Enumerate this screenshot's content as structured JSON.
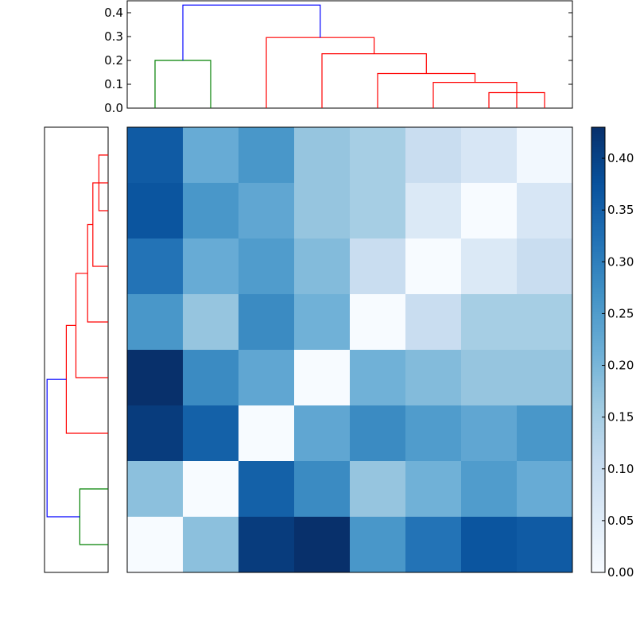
{
  "chart_data": [
    {
      "type": "dendrogram",
      "panel": "top",
      "orientation": "top",
      "ylim": [
        0,
        0.45
      ],
      "yticks": [
        0.0,
        0.1,
        0.2,
        0.3,
        0.4
      ],
      "ytick_labels": [
        "0.0",
        "0.1",
        "0.2",
        "0.3",
        "0.4"
      ],
      "xlim": [
        0,
        80
      ],
      "links": [
        {
          "xs": [
            5,
            5,
            15,
            15
          ],
          "ys": [
            0,
            0.2,
            0.2,
            0
          ],
          "color": "#008000"
        },
        {
          "xs": [
            65,
            65,
            75,
            75
          ],
          "ys": [
            0,
            0.065,
            0.065,
            0
          ],
          "color": "#ff0000"
        },
        {
          "xs": [
            55,
            55,
            70,
            70
          ],
          "ys": [
            0,
            0.108,
            0.108,
            0
          ],
          "color": "#ff0000"
        },
        {
          "xs": [
            45,
            45,
            62.5,
            62.5
          ],
          "ys": [
            0,
            0.145,
            0.145,
            0.108
          ],
          "color": "#ff0000"
        },
        {
          "xs": [
            35,
            35,
            53.75,
            53.75
          ],
          "ys": [
            0,
            0.228,
            0.228,
            0.145
          ],
          "color": "#ff0000"
        },
        {
          "xs": [
            25,
            25,
            44.375,
            44.375
          ],
          "ys": [
            0,
            0.296,
            0.296,
            0.228
          ],
          "color": "#ff0000"
        },
        {
          "xs": [
            10,
            10,
            34.6875,
            34.6875
          ],
          "ys": [
            0.2,
            0.432,
            0.432,
            0.296
          ],
          "color": "#0000ff"
        }
      ]
    },
    {
      "type": "dendrogram",
      "panel": "left",
      "orientation": "left",
      "xlim": [
        0.45,
        0
      ],
      "ylim": [
        0,
        80
      ],
      "links": [
        {
          "ys": [
            5,
            5,
            15,
            15
          ],
          "xs": [
            0,
            0.2,
            0.2,
            0
          ],
          "color": "#008000"
        },
        {
          "ys": [
            65,
            65,
            75,
            75
          ],
          "xs": [
            0,
            0.065,
            0.065,
            0
          ],
          "color": "#ff0000"
        },
        {
          "ys": [
            55,
            55,
            70,
            70
          ],
          "xs": [
            0,
            0.108,
            0.108,
            0
          ],
          "color": "#ff0000"
        },
        {
          "ys": [
            45,
            45,
            62.5,
            62.5
          ],
          "xs": [
            0,
            0.145,
            0.145,
            0.108
          ],
          "color": "#ff0000"
        },
        {
          "ys": [
            35,
            35,
            53.75,
            53.75
          ],
          "xs": [
            0,
            0.228,
            0.228,
            0.145
          ],
          "color": "#ff0000"
        },
        {
          "ys": [
            25,
            25,
            44.375,
            44.375
          ],
          "xs": [
            0,
            0.296,
            0.296,
            0.228
          ],
          "color": "#ff0000"
        },
        {
          "ys": [
            10,
            10,
            34.6875,
            34.6875
          ],
          "xs": [
            0.2,
            0.432,
            0.432,
            0.296
          ],
          "color": "#0000ff"
        }
      ]
    },
    {
      "type": "heatmap",
      "colormap": "Blues",
      "vmin": 0.0,
      "vmax": 0.43,
      "rows": 8,
      "cols": 8,
      "values": [
        [
          0.36,
          0.22,
          0.26,
          0.17,
          0.15,
          0.1,
          0.07,
          0.01
        ],
        [
          0.37,
          0.26,
          0.23,
          0.17,
          0.15,
          0.06,
          0.0,
          0.07
        ],
        [
          0.32,
          0.22,
          0.25,
          0.19,
          0.1,
          0.0,
          0.06,
          0.1
        ],
        [
          0.26,
          0.17,
          0.28,
          0.21,
          0.0,
          0.1,
          0.15,
          0.15
        ],
        [
          0.43,
          0.28,
          0.23,
          0.0,
          0.21,
          0.19,
          0.17,
          0.17
        ],
        [
          0.41,
          0.35,
          0.0,
          0.23,
          0.28,
          0.25,
          0.23,
          0.26
        ],
        [
          0.18,
          0.0,
          0.35,
          0.28,
          0.17,
          0.21,
          0.25,
          0.22
        ],
        [
          0.0,
          0.18,
          0.41,
          0.43,
          0.26,
          0.32,
          0.37,
          0.36
        ]
      ]
    },
    {
      "type": "colorbar",
      "colormap": "Blues",
      "range": [
        0.0,
        0.43
      ],
      "ticks": [
        0.0,
        0.05,
        0.1,
        0.15,
        0.2,
        0.25,
        0.3,
        0.35,
        0.4
      ],
      "tick_labels": [
        "0.00",
        "0.05",
        "0.10",
        "0.15",
        "0.20",
        "0.25",
        "0.30",
        "0.35",
        "0.40"
      ]
    }
  ]
}
